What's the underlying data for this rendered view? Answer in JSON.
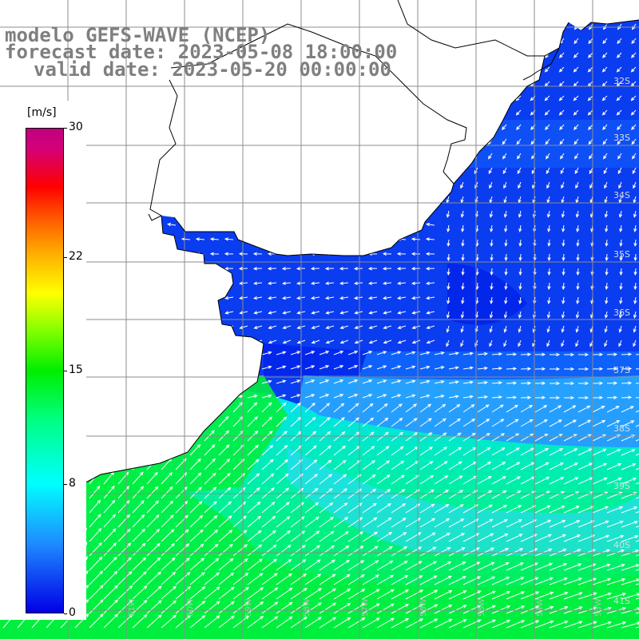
{
  "header": {
    "line1": "modelo GEFS-WAVE (NCEP)",
    "line2": "forecast date: 2023-05-08 18:00:00",
    "line3": "valid date: 2023-05-20 00:00:00"
  },
  "legend": {
    "unit": "[m/s]",
    "min": 0,
    "max": 30,
    "ticks": [
      {
        "label": "30",
        "value": 30
      },
      {
        "label": "22",
        "value": 22
      },
      {
        "label": "15",
        "value": 15
      },
      {
        "label": "8",
        "value": 8
      },
      {
        "label": "0",
        "value": 0
      }
    ]
  },
  "latitude_labels": [
    "32S",
    "33S",
    "34S",
    "35S",
    "36S",
    "37S",
    "38S",
    "39S",
    "40S",
    "41S"
  ],
  "longitude_labels": [
    "63W",
    "62W",
    "61W",
    "60W",
    "59W",
    "58W",
    "57W",
    "56W",
    "55W",
    "54W",
    "53W"
  ],
  "colors": {
    "ocean_low_wind": "#0a3cf0",
    "ocean_mid_wind": "#00e0ff",
    "ocean_high_wind": "#00ee30",
    "land": "#ffffff",
    "grid": "#8c8c8c",
    "arrows": "#ffffff",
    "title_text": "#7f7f7f"
  }
}
